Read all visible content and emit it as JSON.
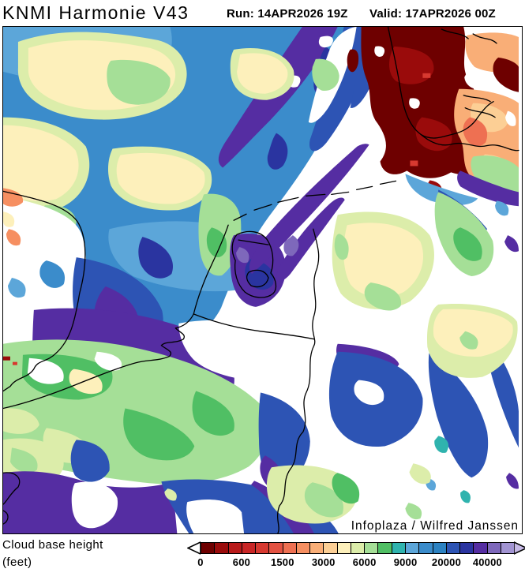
{
  "header": {
    "title": "KNMI Harmonie V43",
    "run_label": "Run: 14APR2026 19Z",
    "valid_label": "Valid: 17APR2026 00Z"
  },
  "map": {
    "attribution": "Infoplaza / Wilfred Janssen"
  },
  "legend": {
    "title_line1": "Cloud base height",
    "title_line2": "(feet)",
    "tick_labels": [
      "0",
      "600",
      "1500",
      "3000",
      "6000",
      "9000",
      "20000",
      "40000"
    ],
    "cells_per_tick": 3,
    "colors": [
      "#6e0000",
      "#9a0b0b",
      "#b81a1a",
      "#c92626",
      "#d73930",
      "#e35242",
      "#ee7052",
      "#f68f61",
      "#f9ae77",
      "#fccf95",
      "#fdf0bb",
      "#dcedaa",
      "#a5df97",
      "#50bf64",
      "#2fb3ae",
      "#5ca6d9",
      "#3b8ccb",
      "#2c82c2",
      "#2d54b4",
      "#2a34a0",
      "#552da2",
      "#7e68bb",
      "#a294d2"
    ],
    "left_arrow_color": "#ffffff",
    "right_arrow_color": "#c6b9e6"
  }
}
